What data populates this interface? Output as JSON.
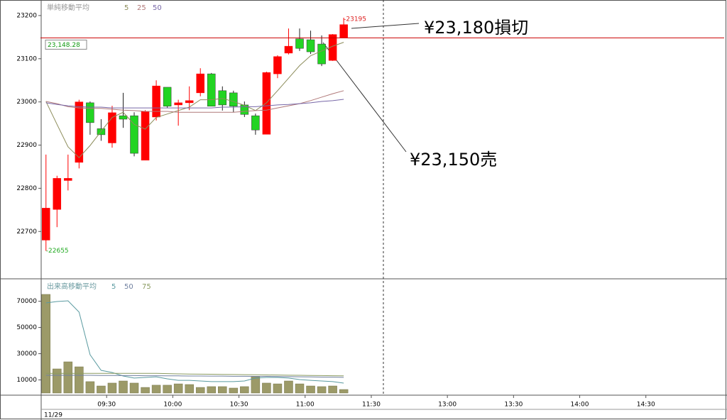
{
  "chart_data": [
    {
      "type": "candlestick",
      "legend_title": "単純移動平均",
      "x": [
        2.5,
        7.5,
        12.5,
        17.5,
        22.5,
        27.5,
        32.5,
        37.5,
        42.5,
        47.5,
        52.5,
        57.5,
        62.5,
        67.5,
        72.5,
        77.5,
        82.5,
        87.5,
        92.5,
        97.5,
        102.5,
        107.5,
        112.5,
        117.5,
        122.5,
        127.5,
        132.5,
        137.5
      ],
      "open": [
        22680,
        22751,
        22818,
        22860,
        22998,
        22938,
        22905,
        22968,
        22968,
        22865,
        22965,
        23034,
        22993,
        22998,
        23021,
        23065,
        23026,
        23021,
        22993,
        22968,
        22925,
        23065,
        23113,
        23146,
        23144,
        23134,
        23096,
        23149
      ],
      "high": [
        22878,
        22829,
        22878,
        23005,
        23001,
        22960,
        22991,
        23021,
        22976,
        22981,
        23050,
        23034,
        23005,
        23036,
        23078,
        23067,
        23036,
        23026,
        23001,
        22973,
        23070,
        23108,
        23170,
        23170,
        23165,
        23154,
        23157,
        23195
      ],
      "low": [
        22655,
        22710,
        22795,
        22846,
        22924,
        22910,
        22894,
        22940,
        22874,
        22865,
        22957,
        22986,
        22945,
        22981,
        23013,
        22990,
        22980,
        22976,
        22965,
        22924,
        22925,
        23055,
        23110,
        23118,
        23111,
        23083,
        23095,
        23149
      ],
      "close": [
        22754,
        22823,
        22823,
        23000,
        22952,
        22924,
        22975,
        22960,
        22881,
        22978,
        23037,
        22990,
        22998,
        23003,
        23065,
        22990,
        22993,
        22990,
        22971,
        22935,
        23068,
        23105,
        23129,
        23124,
        23116,
        23088,
        23156,
        23179
      ],
      "up_color": "#ff0000",
      "down_color": "#22d422",
      "series": [
        {
          "name": "5",
          "color": "#8c8c5a",
          "values": [
            23001,
            22948,
            22896,
            22871,
            22899,
            22932,
            22964,
            22976,
            22948,
            22937,
            22964,
            22972,
            22980,
            22988,
            23005,
            23005,
            23008,
            23001,
            22992,
            22980,
            22998,
            23026,
            23055,
            23084,
            23107,
            23118,
            23129,
            23138
          ]
        },
        {
          "name": "25",
          "color": "#b07878",
          "values": [
            23001,
            22996,
            22989,
            22986,
            22985,
            22985,
            22983,
            22981,
            22980,
            22978,
            22978,
            22978,
            22976,
            22976,
            22976,
            22976,
            22976,
            22976,
            22978,
            22980,
            22981,
            22986,
            22991,
            22996,
            23003,
            23011,
            23019,
            23026
          ]
        },
        {
          "name": "50",
          "color": "#7868a8",
          "values": [
            22998,
            22994,
            22991,
            22989,
            22988,
            22988,
            22986,
            22986,
            22986,
            22986,
            22986,
            22986,
            22986,
            22986,
            22986,
            22986,
            22988,
            22988,
            22989,
            22989,
            22991,
            22993,
            22994,
            22996,
            22998,
            23001,
            23003,
            23006
          ]
        }
      ],
      "ylim": [
        22592,
        23236
      ],
      "yticks": [
        22700,
        22800,
        22900,
        23000,
        23100,
        23200
      ],
      "xlim": [
        0,
        310
      ],
      "price_line": {
        "value": 23148.28,
        "label": "23,148.28",
        "color": "#cc0000"
      },
      "high_marker": {
        "value": 23195,
        "label": "-23195"
      },
      "low_marker": {
        "value": 22655,
        "label": "-22655"
      },
      "annotations": [
        {
          "text": "¥23,180損切"
        },
        {
          "text": "¥23,150売"
        }
      ]
    },
    {
      "type": "bar",
      "legend_title": "出来高移動平均",
      "x": [
        2.5,
        7.5,
        12.5,
        17.5,
        22.5,
        27.5,
        32.5,
        37.5,
        42.5,
        47.5,
        52.5,
        57.5,
        62.5,
        67.5,
        72.5,
        77.5,
        82.5,
        87.5,
        92.5,
        97.5,
        102.5,
        107.5,
        112.5,
        117.5,
        122.5,
        127.5,
        132.5,
        137.5
      ],
      "values": [
        75200,
        18400,
        23800,
        20000,
        8700,
        5400,
        7600,
        9200,
        7600,
        4300,
        6000,
        6000,
        7000,
        6500,
        4300,
        4900,
        4900,
        3800,
        4900,
        12400,
        7600,
        7000,
        9200,
        7000,
        5400,
        4900,
        5400,
        2700
      ],
      "color": "#9c9a68",
      "series": [
        {
          "name": "5",
          "color": "#5a9aa0",
          "values": [
            68700,
            69800,
            70300,
            61700,
            29200,
            17300,
            15700,
            13000,
            11400,
            11900,
            12400,
            10800,
            9700,
            9700,
            9200,
            8700,
            8700,
            8700,
            9200,
            11400,
            11900,
            11900,
            11400,
            10300,
            9700,
            9200,
            8700,
            7600
          ]
        },
        {
          "name": "50",
          "color": "#7080a0",
          "values": [
            13500,
            13500,
            13500,
            13500,
            13500,
            13400,
            13400,
            13300,
            13300,
            13200,
            13200,
            13100,
            13100,
            13000,
            13000,
            12900,
            12900,
            12800,
            12800,
            12700,
            12700,
            12600,
            12500,
            12400,
            12300,
            12200,
            12100,
            12000
          ]
        },
        {
          "name": "75",
          "color": "#8a9a60",
          "values": [
            15000,
            15000,
            15000,
            15000,
            15000,
            15000,
            15000,
            15000,
            15000,
            15000,
            15000,
            14800,
            14600,
            14500,
            14400,
            14300,
            14200,
            14100,
            14000,
            13900,
            13800,
            13700,
            13600,
            13500,
            13400,
            13300,
            13200,
            13100
          ]
        }
      ],
      "ylim": [
        0,
        86000
      ],
      "yticks": [
        10000,
        30000,
        50000,
        70000
      ],
      "xlim": [
        0,
        310
      ],
      "xticks": [
        {
          "value": 30,
          "label": "09:30"
        },
        {
          "value": 60,
          "label": "10:00"
        },
        {
          "value": 90,
          "label": "10:30"
        },
        {
          "value": 120,
          "label": "11:00"
        },
        {
          "value": 150,
          "label": "11:30"
        },
        {
          "value": 184.5,
          "label": "13:00"
        },
        {
          "value": 214.5,
          "label": "13:30"
        },
        {
          "value": 244.5,
          "label": "14:00"
        },
        {
          "value": 274.5,
          "label": "14:30"
        }
      ],
      "date_label": "11/29"
    }
  ]
}
